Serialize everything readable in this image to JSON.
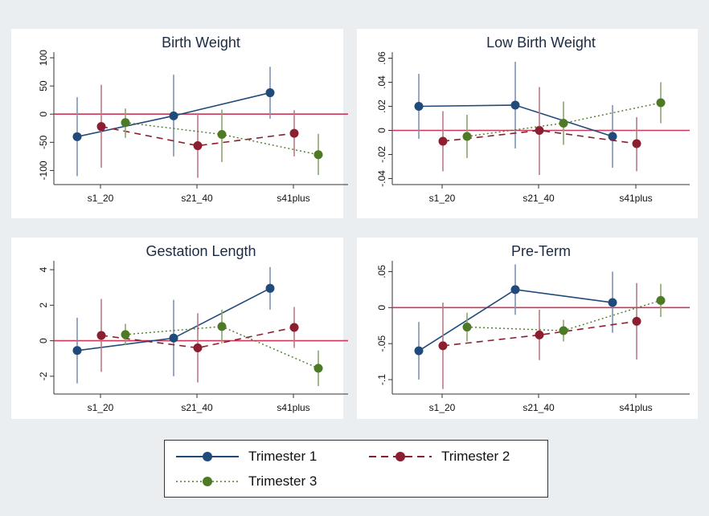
{
  "colors": {
    "background": "#eaeef1",
    "panel": "#ffffff",
    "zero_line": "#c8385a",
    "axis": "#333333",
    "text": "#111111",
    "title_color": "#1c2a44"
  },
  "legend": {
    "items": [
      {
        "label": "Trimester 1",
        "color": "#1f4a7a",
        "dash": "solid"
      },
      {
        "label": "Trimester 2",
        "color": "#8b1e2f",
        "dash": "dashed"
      },
      {
        "label": "Trimester 3",
        "color": "#4e7a26",
        "dash": "dotted"
      }
    ]
  },
  "chart_data": [
    {
      "type": "line",
      "title": "Birth Weight",
      "categories": [
        "s1_20",
        "s21_40",
        "s41plus"
      ],
      "ylim": [
        -125,
        110
      ],
      "yticks": [
        100,
        50,
        0,
        -50,
        -100
      ],
      "ytick_labels": [
        "100",
        "50",
        "0",
        "-50",
        "-100"
      ],
      "series": [
        {
          "name": "Trimester 1",
          "values": [
            -40,
            -3,
            38
          ],
          "lower": [
            -110,
            -75,
            -8
          ],
          "upper": [
            30,
            70,
            84
          ]
        },
        {
          "name": "Trimester 2",
          "values": [
            -22,
            -56,
            -34
          ],
          "lower": [
            -95,
            -113,
            -75
          ],
          "upper": [
            52,
            2,
            7
          ]
        },
        {
          "name": "Trimester 3",
          "values": [
            -15,
            -36,
            -72
          ],
          "lower": [
            -42,
            -85,
            -108
          ],
          "upper": [
            10,
            8,
            -35
          ]
        }
      ]
    },
    {
      "type": "line",
      "title": "Low Birth Weight",
      "categories": [
        "s1_20",
        "s21_40",
        "s41plus"
      ],
      "ylim": [
        -0.045,
        0.065
      ],
      "yticks": [
        0.06,
        0.04,
        0.02,
        0,
        -0.02,
        -0.04
      ],
      "ytick_labels": [
        ".06",
        ".04",
        ".02",
        "0",
        "-.02",
        "-.04"
      ],
      "series": [
        {
          "name": "Trimester 1",
          "values": [
            0.02,
            0.021,
            -0.005
          ],
          "lower": [
            -0.007,
            -0.015,
            -0.031
          ],
          "upper": [
            0.047,
            0.057,
            0.021
          ]
        },
        {
          "name": "Trimester 2",
          "values": [
            -0.009,
            0.0,
            -0.011
          ],
          "lower": [
            -0.034,
            -0.037,
            -0.034
          ],
          "upper": [
            0.016,
            0.036,
            0.011
          ]
        },
        {
          "name": "Trimester 3",
          "values": [
            -0.005,
            0.006,
            0.023
          ],
          "lower": [
            -0.023,
            -0.012,
            0.006
          ],
          "upper": [
            0.013,
            0.024,
            0.04
          ]
        }
      ]
    },
    {
      "type": "line",
      "title": "Gestation Length",
      "categories": [
        "s1_20",
        "s21_40",
        "s41plus"
      ],
      "ylim": [
        -3,
        4.5
      ],
      "yticks": [
        4,
        2,
        0,
        -2
      ],
      "ytick_labels": [
        "4",
        "2",
        "0",
        "-2"
      ],
      "series": [
        {
          "name": "Trimester 1",
          "values": [
            -0.55,
            0.15,
            2.95
          ],
          "lower": [
            -2.4,
            -2.0,
            1.75
          ],
          "upper": [
            1.3,
            2.3,
            4.15
          ]
        },
        {
          "name": "Trimester 2",
          "values": [
            0.3,
            -0.4,
            0.75
          ],
          "lower": [
            -1.75,
            -2.35,
            -0.4
          ],
          "upper": [
            2.35,
            1.55,
            1.9
          ]
        },
        {
          "name": "Trimester 3",
          "values": [
            0.35,
            0.8,
            -1.55
          ],
          "lower": [
            -0.25,
            -0.15,
            -2.55
          ],
          "upper": [
            0.95,
            1.75,
            -0.55
          ]
        }
      ]
    },
    {
      "type": "line",
      "title": "Pre-Term",
      "categories": [
        "s1_20",
        "s21_40",
        "s41plus"
      ],
      "ylim": [
        -0.12,
        0.065
      ],
      "yticks": [
        0.05,
        0,
        -0.05,
        -0.1
      ],
      "ytick_labels": [
        ".05",
        "0",
        "-.05",
        "-.1"
      ],
      "series": [
        {
          "name": "Trimester 1",
          "values": [
            -0.06,
            0.025,
            0.007
          ],
          "lower": [
            -0.1,
            -0.01,
            -0.035
          ],
          "upper": [
            -0.02,
            0.06,
            0.05
          ]
        },
        {
          "name": "Trimester 2",
          "values": [
            -0.053,
            -0.038,
            -0.019
          ],
          "lower": [
            -0.113,
            -0.073,
            -0.072
          ],
          "upper": [
            0.007,
            -0.003,
            0.034
          ]
        },
        {
          "name": "Trimester 3",
          "values": [
            -0.027,
            -0.032,
            0.01
          ],
          "lower": [
            -0.047,
            -0.047,
            -0.013
          ],
          "upper": [
            -0.007,
            -0.017,
            0.033
          ]
        }
      ]
    }
  ]
}
